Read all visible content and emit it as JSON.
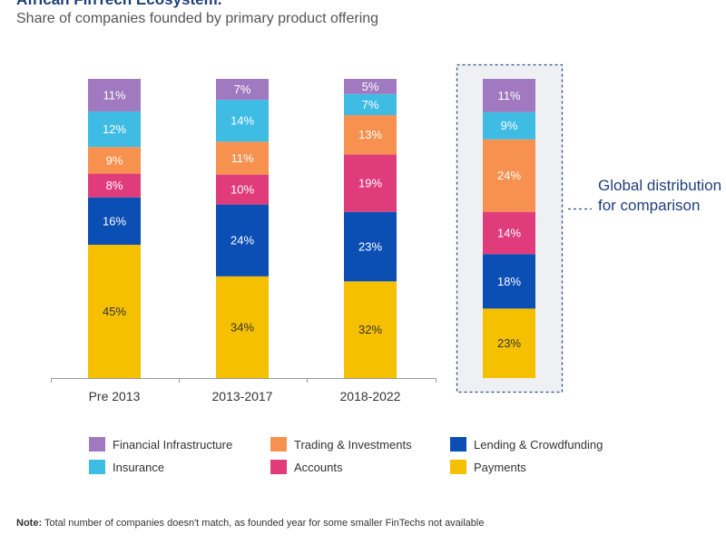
{
  "header": {
    "title": "African FinTech Ecosystem.",
    "subtitle": "Share of companies founded by primary product offering"
  },
  "global_note": "Global distribution for comparison",
  "footer": {
    "note_label": "Note:",
    "note_text": " Total number of companies doesn't match, as founded year for some smaller FinTechs not available"
  },
  "colors": {
    "Payments": "#f5c000",
    "Lending & Crowdfunding": "#0b4fb5",
    "Accounts": "#e03c7c",
    "Trading & Investments": "#f7914f",
    "Insurance": "#3fbce3",
    "Financial Infrastructure": "#a079c0",
    "axis": "#9a9a9a",
    "dashed_box": "#334f80"
  },
  "legend": [
    {
      "name": "Financial Infrastructure"
    },
    {
      "name": "Trading & Investments"
    },
    {
      "name": "Lending & Crowdfunding"
    },
    {
      "name": "Insurance"
    },
    {
      "name": "Accounts"
    },
    {
      "name": "Payments"
    }
  ],
  "chart_data": {
    "type": "bar",
    "stacked": true,
    "percent_stacked": true,
    "title": "African FinTech Ecosystem.",
    "subtitle": "Share of companies founded by primary product offering",
    "categories": [
      "Pre 2013",
      "2013-2017",
      "2018-2022",
      "Global"
    ],
    "category_labels": [
      "Pre 2013",
      "2013-2017",
      "2018-2022",
      ""
    ],
    "value_suffix": "%",
    "legend_position": "bottom",
    "grid": false,
    "series": [
      {
        "name": "Payments",
        "values": [
          45,
          34,
          32,
          23
        ]
      },
      {
        "name": "Lending & Crowdfunding",
        "values": [
          16,
          24,
          23,
          18
        ]
      },
      {
        "name": "Accounts",
        "values": [
          8,
          10,
          19,
          14
        ]
      },
      {
        "name": "Trading & Investments",
        "values": [
          9,
          11,
          13,
          24
        ]
      },
      {
        "name": "Insurance",
        "values": [
          12,
          14,
          7,
          9
        ]
      },
      {
        "name": "Financial Infrastructure",
        "values": [
          11,
          7,
          5,
          11
        ]
      }
    ]
  }
}
